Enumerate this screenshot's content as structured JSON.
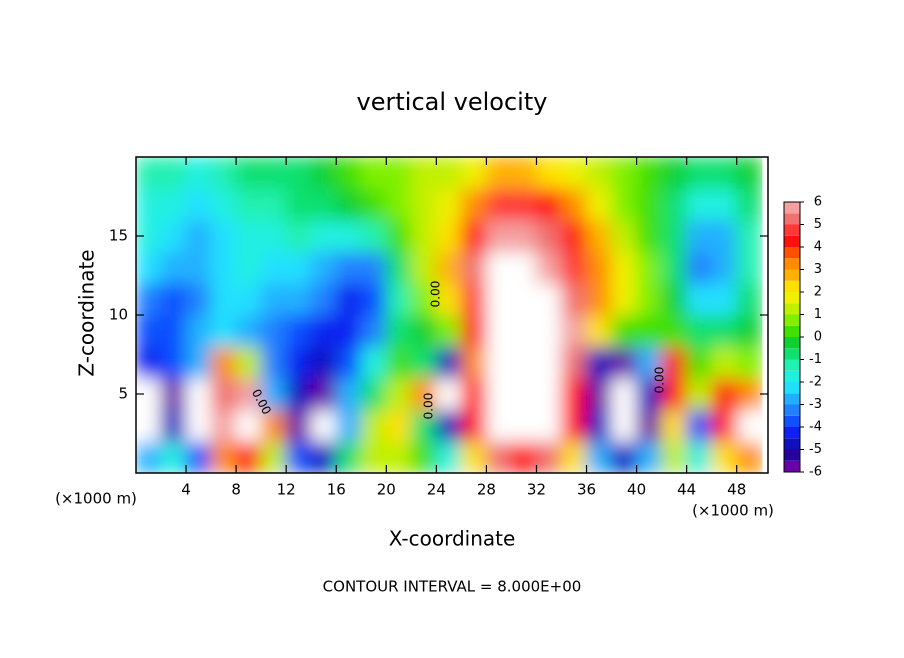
{
  "chart_data": {
    "type": "contour",
    "title": "vertical velocity",
    "x_label": "X-coordinate",
    "y_label": "Z-coordinate",
    "x_unit_label": "(×1000 m)",
    "x_unit_label_right": "(×1000 m)",
    "footer": "CONTOUR INTERVAL = 8.000E+00",
    "contour_labels": [
      "0.00",
      "0.00",
      "0.00",
      "0.00"
    ],
    "xlim": [
      0,
      50.5
    ],
    "ylim": [
      0,
      20
    ],
    "xticks": [
      4,
      8,
      12,
      16,
      20,
      24,
      28,
      32,
      36,
      40,
      44,
      48
    ],
    "yticks": [
      5,
      10,
      15
    ],
    "x": [
      1,
      3,
      5,
      7,
      9,
      11,
      13,
      15,
      17,
      19,
      21,
      23,
      25,
      27,
      29,
      31,
      33,
      35,
      37,
      39,
      41,
      43,
      45,
      47,
      49
    ],
    "z": [
      1,
      3,
      5,
      7,
      9,
      11,
      13,
      15,
      17,
      19
    ],
    "values": [
      [
        -3,
        -2,
        -4,
        3,
        4,
        1,
        -4,
        -5,
        -1,
        1,
        1,
        0,
        -2,
        2,
        5,
        4,
        5,
        2,
        -3,
        -5,
        -3,
        1,
        -2,
        2,
        3
      ],
      [
        -6.5,
        -5,
        -6.5,
        6,
        7,
        3,
        -6,
        -7,
        -3,
        1,
        2,
        -1,
        -5,
        4,
        7,
        7,
        7,
        4,
        -5,
        -7,
        -6,
        2,
        -4,
        4,
        7
      ],
      [
        -6.5,
        -6,
        -6.5,
        5,
        6,
        -3,
        -5,
        -6,
        -3,
        -1,
        1,
        3,
        -6.5,
        4,
        7,
        7,
        7,
        4,
        -6,
        -7,
        -5,
        4,
        1,
        4,
        3
      ],
      [
        -4.5,
        -4,
        -3,
        3,
        1,
        -3.5,
        -4.5,
        -5,
        -4,
        -2,
        0,
        -1,
        -5,
        3,
        7,
        7,
        7,
        5,
        -5,
        -6,
        -3,
        4,
        0,
        1,
        0.5
      ],
      [
        -4,
        -4,
        -3,
        -2.5,
        -3,
        -3.5,
        -4,
        -4.5,
        -4.5,
        -3.5,
        -1,
        -0.5,
        0.5,
        4,
        7,
        7,
        7,
        6,
        2,
        0,
        0,
        0,
        -1,
        -1,
        -0.5
      ],
      [
        -3.5,
        -4,
        -3.5,
        -2.5,
        -2.5,
        -3,
        -3,
        -3.5,
        -4.5,
        -4,
        -1.5,
        0.5,
        2,
        4.5,
        7,
        7,
        6.5,
        5,
        3,
        1.5,
        0.5,
        -0.5,
        -2.5,
        -2.5,
        -1
      ],
      [
        -2.5,
        -3,
        -3,
        -2.5,
        -2,
        -2.5,
        -2.5,
        -3,
        -3.5,
        -3.5,
        -1,
        1,
        2.5,
        5,
        6.5,
        6.5,
        5.5,
        4.5,
        3,
        1.5,
        0.5,
        -1,
        -3.5,
        -3,
        -1.5
      ],
      [
        -2,
        -2.5,
        -3,
        -2.5,
        -2,
        -2,
        -1.5,
        -2,
        -2,
        -1.5,
        0,
        1,
        2,
        4,
        5.5,
        5.5,
        5,
        4,
        2.5,
        1,
        0,
        -1,
        -3,
        -3,
        -1.5
      ],
      [
        -2,
        -2,
        -2.5,
        -2,
        -1.5,
        -1.5,
        -1,
        -1,
        -0.5,
        0,
        0.5,
        1,
        1.5,
        3,
        4.5,
        4.5,
        4,
        3,
        1.5,
        0.5,
        0,
        -1,
        -2,
        -2,
        -1
      ],
      [
        -1.5,
        -1.5,
        -2,
        -1.5,
        -1,
        -1,
        -1,
        -0.5,
        0,
        0.5,
        0.5,
        1,
        1,
        1.5,
        2.5,
        2.5,
        2,
        1.5,
        1,
        0.5,
        0,
        -0.5,
        -1,
        -1,
        -0.5
      ]
    ],
    "colorbar": {
      "lim": [
        -6,
        6
      ],
      "ticks": [
        6,
        5,
        4,
        3,
        2,
        1,
        0,
        -1,
        -2,
        -3,
        -4,
        -5,
        -6
      ],
      "colors": [
        "#6a00a8",
        "#2a009c",
        "#1010c0",
        "#1020f0",
        "#1050ff",
        "#2080ff",
        "#20b0ff",
        "#20e0ff",
        "#20f0e0",
        "#20f0b0",
        "#10e070",
        "#10d030",
        "#40e000",
        "#80f000",
        "#c0f000",
        "#f0f000",
        "#ffe000",
        "#ffb000",
        "#ff8c00",
        "#ff5000",
        "#ff1010",
        "#ff3838",
        "#f07070",
        "#f4a0a0"
      ],
      "out_of_range_color": "#ffffff"
    }
  }
}
